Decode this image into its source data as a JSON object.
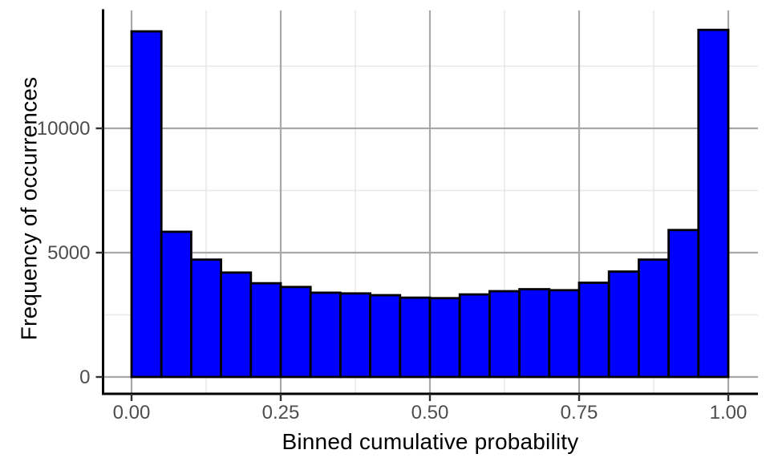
{
  "chart_data": {
    "type": "bar",
    "subtype": "histogram",
    "title": "",
    "xlabel": "Binned cumulative probability",
    "ylabel": "Frequency of occurrences",
    "bin_width": 0.05,
    "bin_start": 0.0,
    "categories": [
      "0.00-0.05",
      "0.05-0.10",
      "0.10-0.15",
      "0.15-0.20",
      "0.20-0.25",
      "0.25-0.30",
      "0.30-0.35",
      "0.35-0.40",
      "0.40-0.45",
      "0.45-0.50",
      "0.50-0.55",
      "0.55-0.60",
      "0.60-0.65",
      "0.65-0.70",
      "0.70-0.75",
      "0.75-0.80",
      "0.80-0.85",
      "0.85-0.90",
      "0.90-0.95",
      "0.95-1.00"
    ],
    "values": [
      13900,
      5840,
      4720,
      4200,
      3770,
      3620,
      3390,
      3360,
      3290,
      3190,
      3170,
      3320,
      3450,
      3530,
      3490,
      3790,
      4240,
      4720,
      5910,
      13960
    ],
    "x_tick_values": [
      0.0,
      0.25,
      0.5,
      0.75,
      1.0
    ],
    "x_tick_labels": [
      "0.00",
      "0.25",
      "0.50",
      "0.75",
      "1.00"
    ],
    "y_tick_values": [
      0,
      5000,
      10000
    ],
    "y_tick_labels": [
      "0",
      "5000",
      "10000"
    ],
    "x_minor_values": [
      0.125,
      0.375,
      0.625,
      0.875
    ],
    "y_minor_values": [
      2500,
      7500,
      12500
    ],
    "xlim": [
      -0.049,
      1.049
    ],
    "ylim": [
      0,
      14700
    ],
    "grid": "major-and-minor",
    "legend": "none",
    "colors": {
      "bar_fill": "#0000ff",
      "bar_stroke": "#000000",
      "axis_line": "#000000",
      "major_grid": "#a8a8a8",
      "minor_grid": "#e7e7e7",
      "tick_label": "#4d4d4d",
      "tick_mark": "#333333",
      "background": "#ffffff"
    }
  }
}
